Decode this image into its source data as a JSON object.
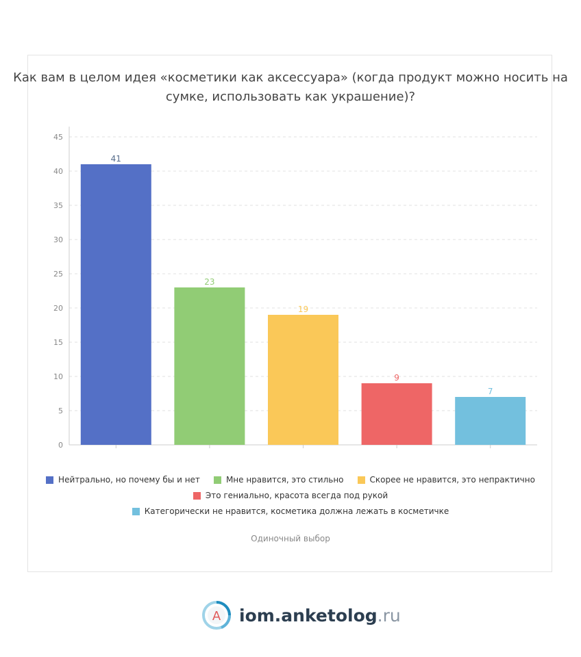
{
  "title": "Как вам в целом идея «косметики как аксессуара» (когда продукт можно носить на сумке, использовать как украшение)?",
  "footnote": "Одиночный выбор",
  "brand": {
    "main": "iom.anketolog",
    "tld": ".ru",
    "logo_letter": "А",
    "logo_icon": "anketolog-logo-icon"
  },
  "chart_data": {
    "type": "bar",
    "categories": [
      "Нейтрально, но почему бы и нет",
      "Мне нравится, это стильно",
      "Скорее не нравится, это непрактично",
      "Это гениально, красота всегда под рукой",
      "Категорически не нравится, косметика должна лежать в косметичке"
    ],
    "values": [
      41,
      23,
      19,
      9,
      7
    ],
    "colors": [
      "#5470c6",
      "#91cc75",
      "#fac858",
      "#ee6666",
      "#73c0de"
    ],
    "ylim": [
      0,
      45
    ],
    "yticks": [
      0,
      5,
      10,
      15,
      20,
      25,
      30,
      35,
      40,
      45
    ],
    "grid": true,
    "legend_position": "bottom"
  }
}
